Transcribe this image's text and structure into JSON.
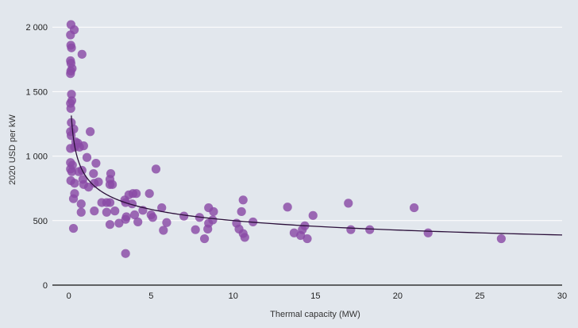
{
  "chart_data": {
    "type": "scatter",
    "title": "",
    "xlabel": "Thermal capacity (MW)",
    "ylabel": "2020 USD per kW",
    "xlim": [
      -1,
      30
    ],
    "ylim": [
      0,
      2100
    ],
    "x_ticks": [
      0,
      5,
      10,
      15,
      20,
      25,
      30
    ],
    "y_ticks": [
      0,
      500,
      1000,
      1500,
      2000
    ],
    "x_tick_labels": [
      "0",
      "5",
      "10",
      "15",
      "20",
      "25",
      "30"
    ],
    "y_tick_labels": [
      "0",
      "500",
      "1 000",
      "1 500",
      "2 000"
    ],
    "grid": "horizontal",
    "colors": {
      "points": "#8a4ba6",
      "trendline": "#2b0f3a",
      "background": "#e2e7ed",
      "grid": "#ffffff"
    },
    "trendline": {
      "type": "power",
      "coefficient": 850,
      "exponent": -0.23,
      "x_range": [
        0.15,
        30
      ]
    },
    "points": [
      {
        "x": 0.13,
        "y": 2020
      },
      {
        "x": 0.33,
        "y": 1980
      },
      {
        "x": 0.1,
        "y": 1940
      },
      {
        "x": 0.12,
        "y": 1860
      },
      {
        "x": 0.16,
        "y": 1840
      },
      {
        "x": 0.8,
        "y": 1790
      },
      {
        "x": 0.1,
        "y": 1740
      },
      {
        "x": 0.13,
        "y": 1720
      },
      {
        "x": 0.2,
        "y": 1680
      },
      {
        "x": 0.12,
        "y": 1660
      },
      {
        "x": 0.1,
        "y": 1640
      },
      {
        "x": 0.16,
        "y": 1480
      },
      {
        "x": 0.18,
        "y": 1430
      },
      {
        "x": 0.1,
        "y": 1410
      },
      {
        "x": 0.12,
        "y": 1370
      },
      {
        "x": 0.15,
        "y": 1260
      },
      {
        "x": 0.3,
        "y": 1210
      },
      {
        "x": 0.1,
        "y": 1190
      },
      {
        "x": 1.3,
        "y": 1190
      },
      {
        "x": 0.14,
        "y": 1160
      },
      {
        "x": 0.42,
        "y": 1110
      },
      {
        "x": 0.55,
        "y": 1100
      },
      {
        "x": 0.65,
        "y": 1070
      },
      {
        "x": 0.1,
        "y": 1060
      },
      {
        "x": 0.35,
        "y": 1070
      },
      {
        "x": 0.9,
        "y": 1080
      },
      {
        "x": 1.1,
        "y": 990
      },
      {
        "x": 0.1,
        "y": 950
      },
      {
        "x": 0.22,
        "y": 930
      },
      {
        "x": 1.65,
        "y": 945
      },
      {
        "x": 0.1,
        "y": 900
      },
      {
        "x": 0.18,
        "y": 880
      },
      {
        "x": 0.6,
        "y": 880
      },
      {
        "x": 0.8,
        "y": 890
      },
      {
        "x": 1.5,
        "y": 865
      },
      {
        "x": 2.55,
        "y": 865
      },
      {
        "x": 5.3,
        "y": 900
      },
      {
        "x": 0.12,
        "y": 810
      },
      {
        "x": 0.85,
        "y": 820
      },
      {
        "x": 2.5,
        "y": 820
      },
      {
        "x": 0.35,
        "y": 790
      },
      {
        "x": 0.9,
        "y": 780
      },
      {
        "x": 1.2,
        "y": 760
      },
      {
        "x": 1.55,
        "y": 790
      },
      {
        "x": 1.8,
        "y": 800
      },
      {
        "x": 2.5,
        "y": 780
      },
      {
        "x": 2.65,
        "y": 780
      },
      {
        "x": 0.35,
        "y": 710
      },
      {
        "x": 0.28,
        "y": 670
      },
      {
        "x": 3.65,
        "y": 700
      },
      {
        "x": 3.9,
        "y": 710
      },
      {
        "x": 4.1,
        "y": 710
      },
      {
        "x": 4.9,
        "y": 710
      },
      {
        "x": 10.6,
        "y": 660
      },
      {
        "x": 0.75,
        "y": 630
      },
      {
        "x": 2.0,
        "y": 640
      },
      {
        "x": 2.3,
        "y": 640
      },
      {
        "x": 2.5,
        "y": 640
      },
      {
        "x": 3.4,
        "y": 660
      },
      {
        "x": 3.45,
        "y": 640
      },
      {
        "x": 3.85,
        "y": 630
      },
      {
        "x": 0.75,
        "y": 565
      },
      {
        "x": 1.55,
        "y": 575
      },
      {
        "x": 2.3,
        "y": 565
      },
      {
        "x": 2.8,
        "y": 575
      },
      {
        "x": 4.5,
        "y": 580
      },
      {
        "x": 5.65,
        "y": 600
      },
      {
        "x": 8.5,
        "y": 600
      },
      {
        "x": 8.8,
        "y": 570
      },
      {
        "x": 10.5,
        "y": 570
      },
      {
        "x": 13.3,
        "y": 605
      },
      {
        "x": 17.0,
        "y": 635
      },
      {
        "x": 21.0,
        "y": 600
      },
      {
        "x": 3.5,
        "y": 530
      },
      {
        "x": 3.45,
        "y": 510
      },
      {
        "x": 4.0,
        "y": 545
      },
      {
        "x": 5.0,
        "y": 545
      },
      {
        "x": 5.1,
        "y": 525
      },
      {
        "x": 7.0,
        "y": 535
      },
      {
        "x": 7.95,
        "y": 525
      },
      {
        "x": 8.75,
        "y": 505
      },
      {
        "x": 14.85,
        "y": 540
      },
      {
        "x": 2.5,
        "y": 470
      },
      {
        "x": 3.05,
        "y": 480
      },
      {
        "x": 4.2,
        "y": 490
      },
      {
        "x": 5.95,
        "y": 485
      },
      {
        "x": 8.5,
        "y": 480
      },
      {
        "x": 10.2,
        "y": 480
      },
      {
        "x": 11.2,
        "y": 490
      },
      {
        "x": 0.28,
        "y": 440
      },
      {
        "x": 5.75,
        "y": 425
      },
      {
        "x": 7.7,
        "y": 430
      },
      {
        "x": 8.45,
        "y": 435
      },
      {
        "x": 10.35,
        "y": 435
      },
      {
        "x": 14.35,
        "y": 460
      },
      {
        "x": 14.2,
        "y": 430
      },
      {
        "x": 17.15,
        "y": 430
      },
      {
        "x": 18.3,
        "y": 430
      },
      {
        "x": 13.7,
        "y": 405
      },
      {
        "x": 14.1,
        "y": 385
      },
      {
        "x": 10.6,
        "y": 400
      },
      {
        "x": 21.85,
        "y": 405
      },
      {
        "x": 8.25,
        "y": 360
      },
      {
        "x": 10.7,
        "y": 370
      },
      {
        "x": 14.5,
        "y": 360
      },
      {
        "x": 26.3,
        "y": 360
      },
      {
        "x": 3.45,
        "y": 245
      }
    ]
  }
}
